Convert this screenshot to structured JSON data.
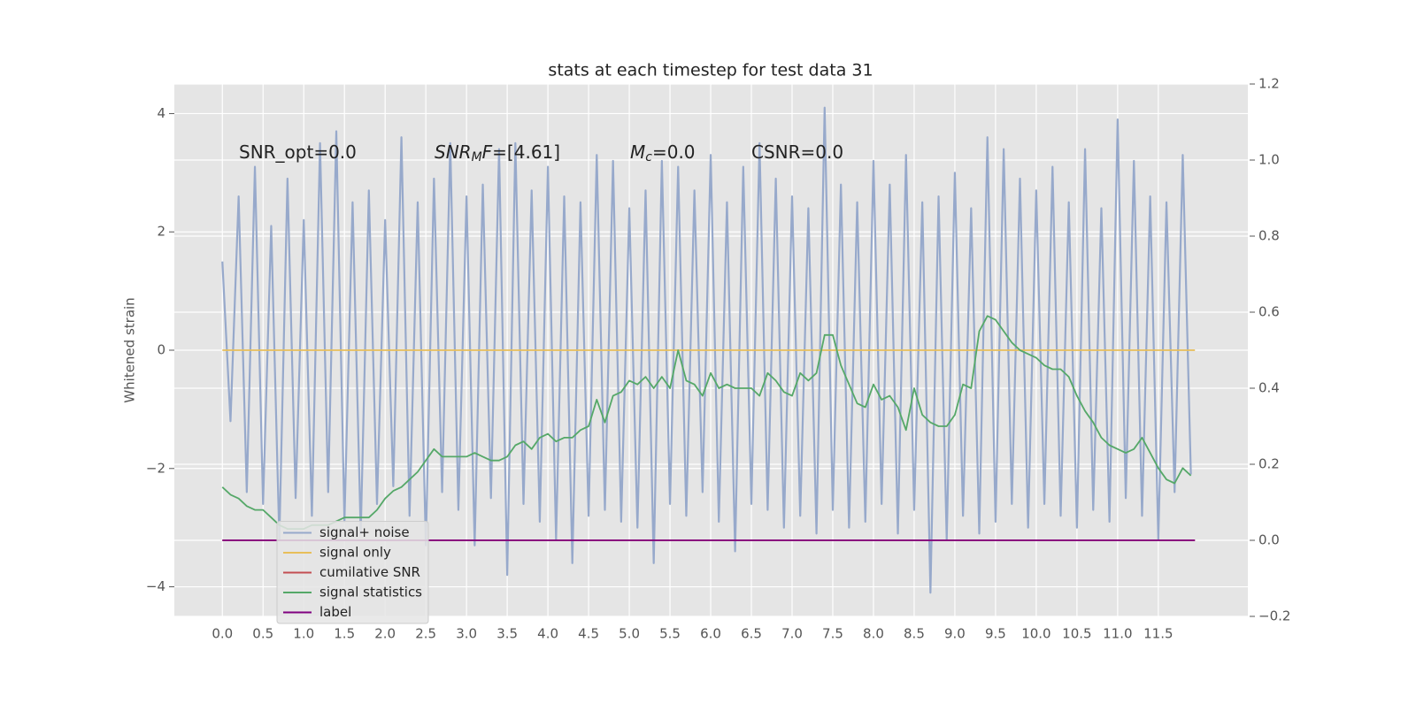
{
  "chart_data": {
    "type": "line",
    "title": "stats at each timestep for test data 31",
    "ylabel": "Whitened strain",
    "grid": true,
    "legend": "lower left",
    "xlim": [
      -0.59,
      12.6
    ],
    "ylim": [
      -4.5,
      4.5
    ],
    "y2lim": [
      -0.2,
      1.2
    ],
    "xticks": [
      {
        "value": 0,
        "label": "0.0"
      },
      0.5,
      {
        "value": 1,
        "label": "1.0"
      },
      1.5,
      {
        "value": 2,
        "label": "2.0"
      },
      2.5,
      {
        "value": 3,
        "label": "3.0"
      },
      3.5,
      {
        "value": 4,
        "label": "4.0"
      },
      4.5,
      {
        "value": 5,
        "label": "5.0"
      },
      5.5,
      {
        "value": 6,
        "label": "6.0"
      },
      6.5,
      {
        "value": 7,
        "label": "7.0"
      },
      7.5,
      {
        "value": 8,
        "label": "8.0"
      },
      8.5,
      {
        "value": 9,
        "label": "9.0"
      },
      9.5,
      {
        "value": 10,
        "label": "10.0"
      },
      10.5,
      {
        "value": 11,
        "label": "11.0"
      },
      11.5
    ],
    "yticks": [
      {
        "value": -4,
        "label": "−4"
      },
      {
        "value": -2,
        "label": "−2"
      },
      0,
      2,
      4
    ],
    "y2ticks": [
      {
        "value": -0.2,
        "label": "−0.2"
      },
      {
        "value": 0,
        "label": "0.0"
      },
      0.2,
      0.4,
      0.6,
      0.8,
      {
        "value": 1,
        "label": "1.0"
      },
      1.2
    ],
    "annotations": [
      [
        {
          "text": "SNR_opt=0.0"
        }
      ],
      [
        {
          "text": "SNR",
          "italic": true
        },
        {
          "text": "M",
          "italic": true,
          "sub": true
        },
        {
          "text": "F",
          "italic": true
        },
        {
          "text": "=[4.61]"
        }
      ],
      [
        {
          "text": "M",
          "italic": true
        },
        {
          "text": "c",
          "italic": true,
          "sub": true
        },
        {
          "text": "=0.0"
        }
      ],
      [
        {
          "text": "CSNR=0.0"
        }
      ]
    ],
    "x": [
      0,
      0.1,
      0.2,
      0.3,
      0.4,
      0.5,
      0.6,
      0.7,
      0.8,
      0.9,
      1,
      1.1,
      1.2,
      1.3,
      1.4,
      1.5,
      1.6,
      1.7,
      1.8,
      1.9,
      2,
      2.1,
      2.2,
      2.3,
      2.4,
      2.5,
      2.6,
      2.7,
      2.8,
      2.9,
      3,
      3.1,
      3.2,
      3.3,
      3.4,
      3.5,
      3.6,
      3.7,
      3.8,
      3.9,
      4,
      4.1,
      4.2,
      4.3,
      4.4,
      4.5,
      4.6,
      4.7,
      4.8,
      4.9,
      5,
      5.1,
      5.2,
      5.3,
      5.4,
      5.5,
      5.6,
      5.7,
      5.8,
      5.9,
      6,
      6.1,
      6.2,
      6.3,
      6.4,
      6.5,
      6.6,
      6.7,
      6.8,
      6.9,
      7,
      7.1,
      7.2,
      7.3,
      7.4,
      7.5,
      7.6,
      7.7,
      7.8,
      7.9,
      8,
      8.1,
      8.2,
      8.3,
      8.4,
      8.5,
      8.6,
      8.7,
      8.8,
      8.9,
      9,
      9.1,
      9.2,
      9.3,
      9.4,
      9.5,
      9.6,
      9.7,
      9.8,
      9.9,
      10,
      10.1,
      10.2,
      10.3,
      10.4,
      10.5,
      10.6,
      10.7,
      10.8,
      10.9,
      11,
      11.1,
      11.2,
      11.3,
      11.4,
      11.5,
      11.6,
      11.7,
      11.8,
      11.9
    ],
    "series": [
      {
        "name": "signal+ noise",
        "color": "#97a9cb",
        "values": [
          1.5,
          -1.2,
          2.6,
          -2.4,
          3.1,
          -2.6,
          2.1,
          -3.2,
          2.9,
          -2.5,
          2.2,
          -2.8,
          3.5,
          -2.4,
          3.7,
          -2.9,
          2.5,
          -3.1,
          2.7,
          -2.6,
          2.2,
          -2.3,
          3.6,
          -2.8,
          2.5,
          -3.3,
          2.9,
          -2.4,
          3.5,
          -2.7,
          2.6,
          -3.3,
          2.8,
          -2.5,
          3.4,
          -3.8,
          3.5,
          -2.6,
          2.7,
          -2.9,
          3.1,
          -3.2,
          2.6,
          -3.6,
          2.5,
          -2.8,
          3.3,
          -2.7,
          3.2,
          -2.9,
          2.4,
          -3.0,
          2.7,
          -3.6,
          3.2,
          -2.6,
          3.1,
          -2.8,
          2.7,
          -2.4,
          3.3,
          -2.9,
          2.5,
          -3.4,
          3.1,
          -2.6,
          3.5,
          -2.7,
          2.9,
          -3.0,
          2.6,
          -2.8,
          2.4,
          -3.1,
          4.1,
          -2.7,
          2.8,
          -3.0,
          2.5,
          -2.9,
          3.2,
          -2.6,
          2.8,
          -3.1,
          3.3,
          -2.7,
          2.5,
          -4.1,
          2.6,
          -3.2,
          3.0,
          -2.8,
          2.4,
          -3.1,
          3.6,
          -2.9,
          3.4,
          -2.6,
          2.9,
          -3.0,
          2.7,
          -2.6,
          3.1,
          -2.8,
          2.5,
          -3.0,
          3.4,
          -2.7,
          2.4,
          -2.9,
          3.9,
          -2.5,
          3.2,
          -2.8,
          2.6,
          -3.2,
          2.5,
          -2.4,
          3.3,
          -2.1
        ]
      },
      {
        "name": "signal only",
        "color": "#e8bf5a",
        "x": [
          0,
          11.95
        ],
        "values": [
          0,
          0
        ]
      },
      {
        "name": "cumilative SNR",
        "color": "#c44e52",
        "axis": "y2",
        "x": [
          0,
          11.95
        ],
        "values": [
          0,
          0
        ]
      },
      {
        "name": "signal statistics",
        "color": "#55a868",
        "axis": "y2",
        "values": [
          0.14,
          0.12,
          0.11,
          0.09,
          0.08,
          0.08,
          0.06,
          0.04,
          0.03,
          0.03,
          0.03,
          0.04,
          0.04,
          0.04,
          0.05,
          0.06,
          0.06,
          0.06,
          0.06,
          0.08,
          0.11,
          0.13,
          0.14,
          0.16,
          0.18,
          0.21,
          0.24,
          0.22,
          0.22,
          0.22,
          0.22,
          0.23,
          0.22,
          0.21,
          0.21,
          0.22,
          0.25,
          0.26,
          0.24,
          0.27,
          0.28,
          0.26,
          0.27,
          0.27,
          0.29,
          0.3,
          0.37,
          0.31,
          0.38,
          0.39,
          0.42,
          0.41,
          0.43,
          0.4,
          0.43,
          0.4,
          0.5,
          0.42,
          0.41,
          0.38,
          0.44,
          0.4,
          0.41,
          0.4,
          0.4,
          0.4,
          0.38,
          0.44,
          0.42,
          0.39,
          0.38,
          0.44,
          0.42,
          0.44,
          0.54,
          0.54,
          0.46,
          0.41,
          0.36,
          0.35,
          0.41,
          0.37,
          0.38,
          0.35,
          0.29,
          0.4,
          0.33,
          0.31,
          0.3,
          0.3,
          0.33,
          0.41,
          0.4,
          0.55,
          0.59,
          0.58,
          0.55,
          0.52,
          0.5,
          0.49,
          0.48,
          0.46,
          0.45,
          0.45,
          0.43,
          0.38,
          0.34,
          0.31,
          0.27,
          0.25,
          0.24,
          0.23,
          0.24,
          0.27,
          0.23,
          0.19,
          0.16,
          0.15,
          0.19,
          0.17
        ]
      },
      {
        "name": "label",
        "color": "#800080",
        "axis": "y2",
        "x": [
          0,
          11.95
        ],
        "values": [
          0,
          0
        ]
      }
    ]
  }
}
